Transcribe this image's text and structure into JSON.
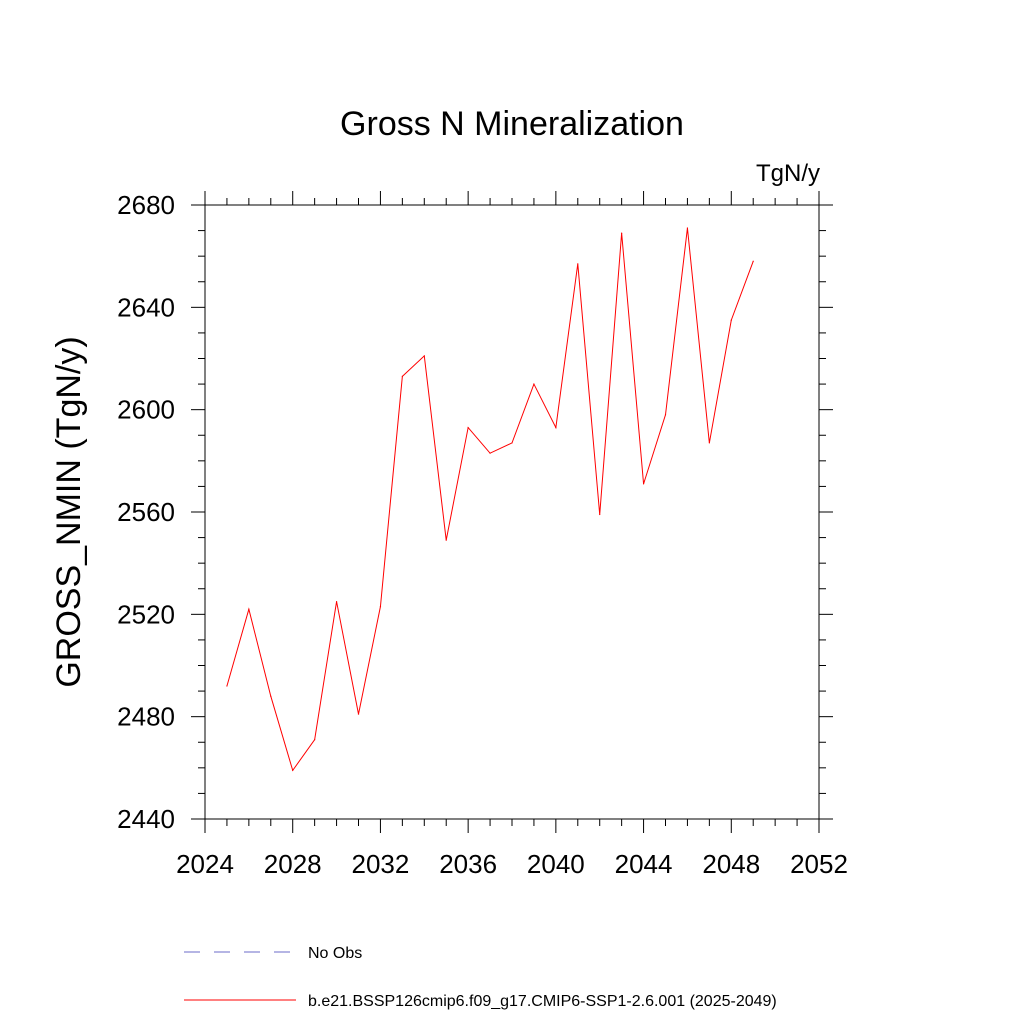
{
  "chart_data": {
    "type": "line",
    "title": "Gross N Mineralization",
    "units_label": "TgN/y",
    "ylabel": "GROSS_NMIN  (TgN/y)",
    "xlabel": "",
    "xlim": [
      2024,
      2052
    ],
    "ylim": [
      2440,
      2680
    ],
    "x_ticks": [
      2024,
      2028,
      2032,
      2036,
      2040,
      2044,
      2048,
      2052
    ],
    "y_ticks": [
      2440,
      2480,
      2520,
      2560,
      2600,
      2640,
      2680
    ],
    "x_tick_labels": [
      "2024",
      "2028",
      "2032",
      "2036",
      "2040",
      "2044",
      "2048",
      "2052"
    ],
    "y_tick_labels": [
      "2440",
      "2480",
      "2520",
      "2560",
      "2600",
      "2640",
      "2680"
    ],
    "grid": false,
    "legend_position": "bottom",
    "series": [
      {
        "name": "b.e21.BSSP126cmip6.f09_g17.CMIP6-SSP1-2.6.001 (2025-2049)",
        "color": "#ff0000",
        "style": "solid",
        "x": [
          2025,
          2026,
          2027,
          2028,
          2029,
          2030,
          2031,
          2032,
          2033,
          2034,
          2035,
          2036,
          2037,
          2038,
          2039,
          2040,
          2041,
          2042,
          2043,
          2044,
          2045,
          2046,
          2047,
          2048,
          2049
        ],
        "y": [
          2492,
          2522,
          2488,
          2459,
          2471,
          2525,
          2481,
          2523,
          2613,
          2621,
          2549,
          2593,
          2583,
          2587,
          2610,
          2593,
          2657,
          2559,
          2669,
          2571,
          2598,
          2671,
          2587,
          2635,
          2658
        ]
      },
      {
        "name": "No Obs",
        "color": "#6b6bc8",
        "style": "dashed",
        "x": [],
        "y": []
      }
    ]
  }
}
